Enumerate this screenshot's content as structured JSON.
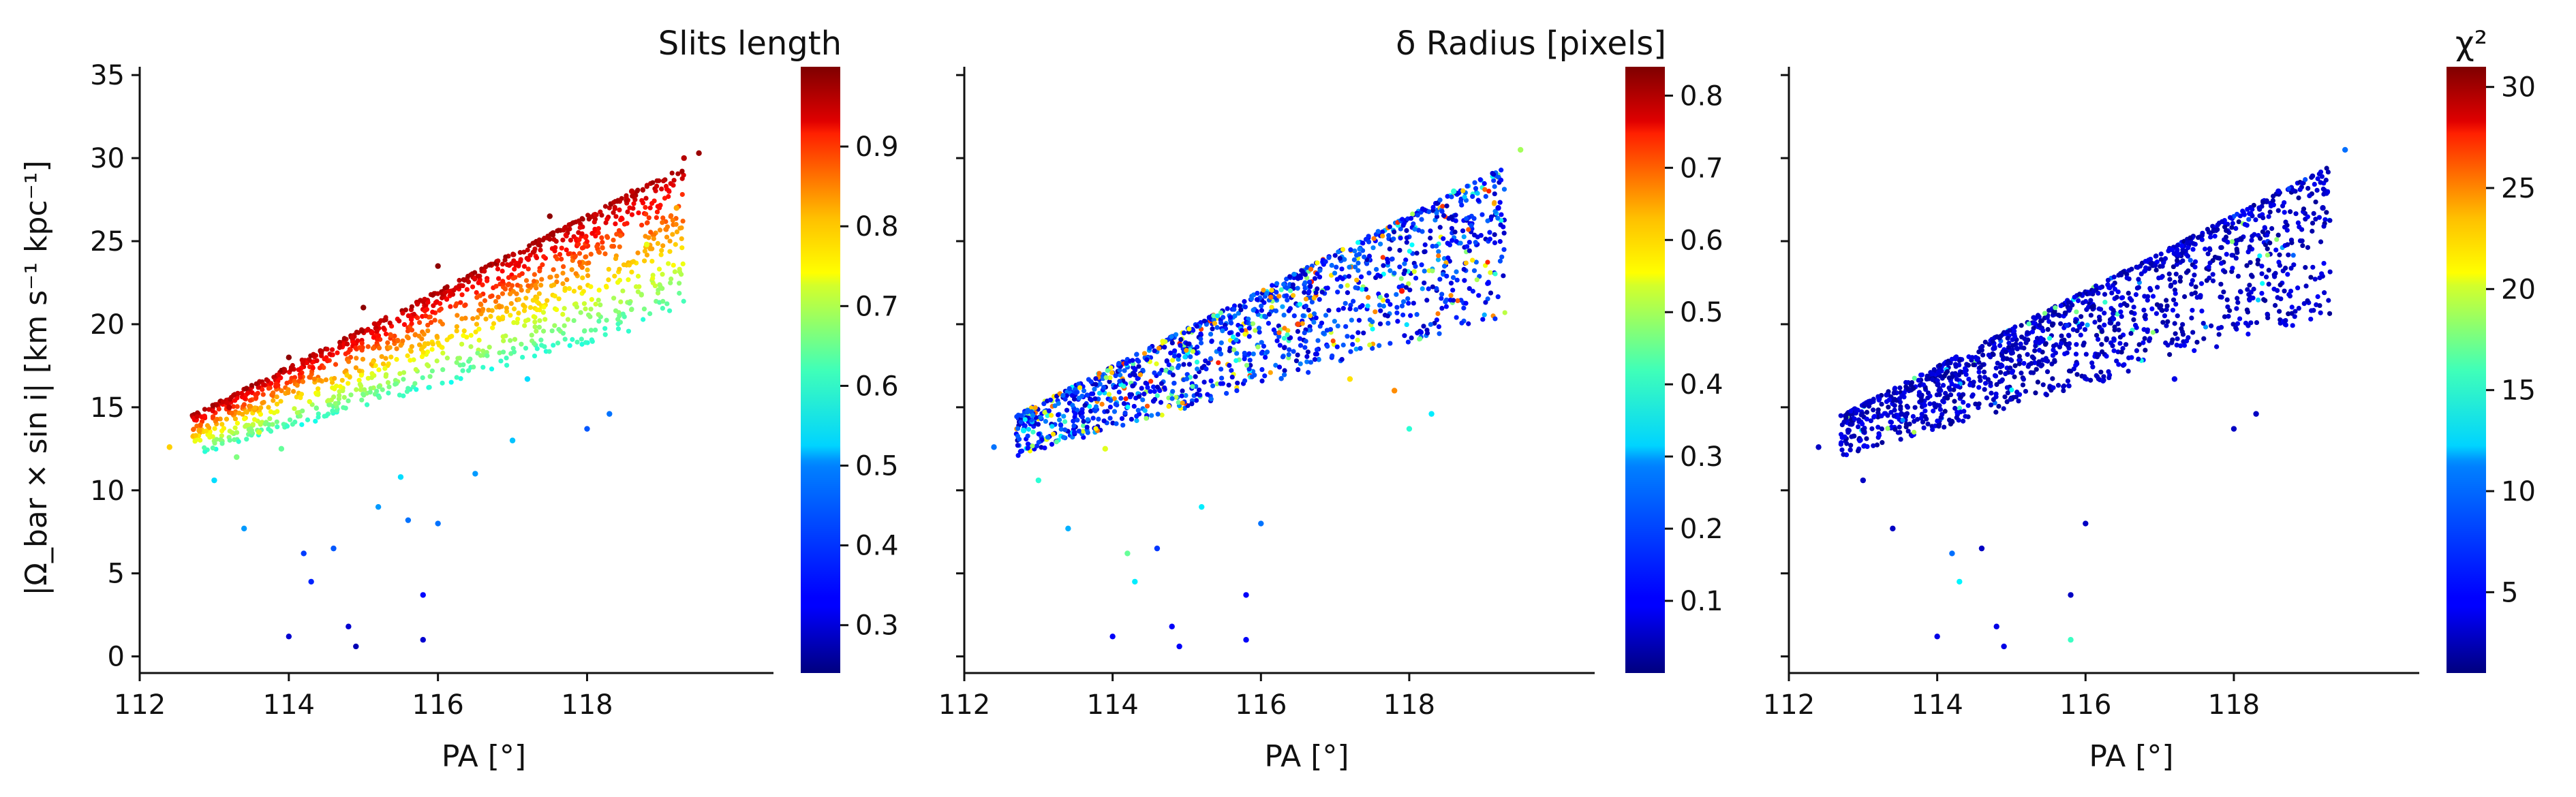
{
  "figure": {
    "shared_ylabel": "|Ω_bar × sin i|  [km s⁻¹ kpc⁻¹]",
    "shared_xlabel": "PA [°]"
  },
  "chart_data": [
    {
      "type": "scatter",
      "title": "Slits length",
      "xlabel": "PA [°]",
      "ylabel": "|Ω_bar × sin i|  [km s⁻¹ kpc⁻¹]",
      "xlim": [
        112,
        120.5
      ],
      "ylim": [
        -1,
        35.5
      ],
      "xticks": [
        112,
        114,
        116,
        118
      ],
      "yticks": [
        0,
        5,
        10,
        15,
        20,
        25,
        30,
        35
      ],
      "colorbar": {
        "label": "Slits length",
        "range": [
          0.24,
          1.0
        ],
        "ticks": [
          0.3,
          0.4,
          0.5,
          0.6,
          0.7,
          0.8,
          0.9
        ],
        "colormap": "jet"
      },
      "color_pattern": "high values on upper edge of the band, decreasing downward",
      "points": [
        [
          112.4,
          12.6,
          0.75
        ],
        [
          112.8,
          13.6,
          0.78
        ],
        [
          113.0,
          10.6,
          0.5
        ],
        [
          113.4,
          7.7,
          0.45
        ],
        [
          113.3,
          12.0,
          0.62
        ],
        [
          113.6,
          13.5,
          0.68
        ],
        [
          113.9,
          12.5,
          0.6
        ],
        [
          114.0,
          1.2,
          0.3
        ],
        [
          114.2,
          6.2,
          0.38
        ],
        [
          114.3,
          4.5,
          0.36
        ],
        [
          114.6,
          6.5,
          0.4
        ],
        [
          114.8,
          1.8,
          0.3
        ],
        [
          114.9,
          0.6,
          0.28
        ],
        [
          115.2,
          9.0,
          0.45
        ],
        [
          115.5,
          10.8,
          0.5
        ],
        [
          115.6,
          8.2,
          0.42
        ],
        [
          115.8,
          1.0,
          0.3
        ],
        [
          115.8,
          3.7,
          0.34
        ],
        [
          116.0,
          8.0,
          0.42
        ],
        [
          116.5,
          11.0,
          0.45
        ],
        [
          117.0,
          13.0,
          0.48
        ],
        [
          117.2,
          16.7,
          0.5
        ],
        [
          118.0,
          13.7,
          0.4
        ],
        [
          118.3,
          14.6,
          0.42
        ],
        [
          118.8,
          24.8,
          0.7
        ],
        [
          119.2,
          27.0,
          0.78
        ],
        [
          119.5,
          30.3,
          0.98
        ],
        [
          119.3,
          30.0,
          0.96
        ],
        [
          118.6,
          28.0,
          0.95
        ],
        [
          117.5,
          26.5,
          0.99
        ],
        [
          116.0,
          23.5,
          0.99
        ],
        [
          115.0,
          21.0,
          0.99
        ],
        [
          114.0,
          18.0,
          0.99
        ],
        [
          113.2,
          15.0,
          0.95
        ]
      ],
      "band": {
        "x_range": [
          112.7,
          119.3
        ],
        "upper_edge_y": [
          14.5,
          29.5
        ],
        "spread_y": [
          2.5,
          9.0
        ],
        "dense_point_count": 1400
      }
    },
    {
      "type": "scatter",
      "title": "δ Radius [pixels]",
      "xlabel": "PA [°]",
      "xlim": [
        112,
        120.5
      ],
      "ylim": [
        -1,
        35.5
      ],
      "xticks": [
        112,
        114,
        116,
        118
      ],
      "yticks": [
        0,
        5,
        10,
        15,
        20,
        25,
        30,
        35
      ],
      "colorbar": {
        "label": "δ Radius [pixels]",
        "range": [
          0.0,
          0.84
        ],
        "ticks": [
          0.1,
          0.2,
          0.3,
          0.4,
          0.5,
          0.6,
          0.7,
          0.8
        ],
        "colormap": "jet"
      },
      "color_pattern": "mostly low values (blue) with scattered higher values",
      "points": [
        [
          112.4,
          12.6,
          0.2
        ],
        [
          112.8,
          13.6,
          0.3
        ],
        [
          113.0,
          10.6,
          0.35
        ],
        [
          113.4,
          7.7,
          0.25
        ],
        [
          113.9,
          12.5,
          0.5
        ],
        [
          114.0,
          1.2,
          0.1
        ],
        [
          114.2,
          6.2,
          0.4
        ],
        [
          114.3,
          4.5,
          0.3
        ],
        [
          114.6,
          6.5,
          0.15
        ],
        [
          114.8,
          1.8,
          0.1
        ],
        [
          114.9,
          0.6,
          0.1
        ],
        [
          115.2,
          9.0,
          0.3
        ],
        [
          115.8,
          1.0,
          0.1
        ],
        [
          115.8,
          3.7,
          0.1
        ],
        [
          116.0,
          8.0,
          0.2
        ],
        [
          117.2,
          16.7,
          0.55
        ],
        [
          117.8,
          16.0,
          0.62
        ],
        [
          118.0,
          13.7,
          0.35
        ],
        [
          118.3,
          14.6,
          0.3
        ],
        [
          119.5,
          30.5,
          0.45
        ],
        [
          119.2,
          27.0,
          0.1
        ],
        [
          118.6,
          28.0,
          0.35
        ],
        [
          117.9,
          22.0,
          0.72
        ],
        [
          116.5,
          20.0,
          0.68
        ]
      ],
      "band": {
        "x_range": [
          112.7,
          119.3
        ],
        "upper_edge_y": [
          14.5,
          29.5
        ],
        "spread_y": [
          2.5,
          9.0
        ],
        "dense_point_count": 1400
      }
    },
    {
      "type": "scatter",
      "title": "χ²",
      "xlabel": "PA [°]",
      "xlim": [
        112,
        120.5
      ],
      "ylim": [
        -1,
        35.5
      ],
      "xticks": [
        112,
        114,
        116,
        118
      ],
      "yticks": [
        0,
        5,
        10,
        15,
        20,
        25,
        30,
        35
      ],
      "colorbar": {
        "label": "χ²",
        "range": [
          1.0,
          31.0
        ],
        "ticks": [
          5,
          10,
          15,
          20,
          25,
          30
        ],
        "colormap": "jet"
      },
      "color_pattern": "almost all low values (dark blue)",
      "points": [
        [
          112.4,
          12.6,
          3
        ],
        [
          112.8,
          13.6,
          3
        ],
        [
          113.0,
          10.6,
          3
        ],
        [
          113.4,
          7.7,
          3
        ],
        [
          114.0,
          1.2,
          4
        ],
        [
          114.2,
          6.2,
          8
        ],
        [
          114.3,
          4.5,
          12
        ],
        [
          114.6,
          6.5,
          3
        ],
        [
          114.8,
          1.8,
          4
        ],
        [
          114.9,
          0.6,
          4
        ],
        [
          115.8,
          1.0,
          14
        ],
        [
          115.8,
          3.7,
          3
        ],
        [
          116.0,
          8.0,
          3
        ],
        [
          117.2,
          16.7,
          4
        ],
        [
          118.0,
          13.7,
          3
        ],
        [
          118.3,
          14.6,
          3
        ],
        [
          119.5,
          30.5,
          8
        ],
        [
          119.2,
          27.0,
          3
        ],
        [
          118.6,
          28.0,
          4
        ]
      ],
      "band": {
        "x_range": [
          112.7,
          119.3
        ],
        "upper_edge_y": [
          14.5,
          29.5
        ],
        "spread_y": [
          2.5,
          9.0
        ],
        "dense_point_count": 1400
      }
    }
  ]
}
